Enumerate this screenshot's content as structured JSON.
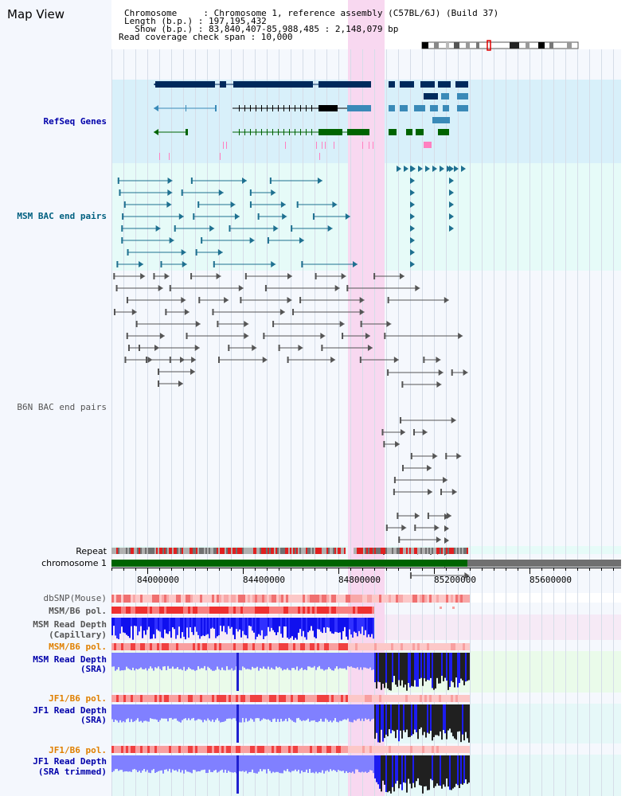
{
  "title": "Map View",
  "header": {
    "chromosome": "Chromosome     : Chromosome 1, reference assembly (C57BL/6J) (Build 37)",
    "length": "Length (b.p.) : 197,195,432",
    "show": "  Show (b.p.) : 83,840,407-85,988,485 : 2,148,079 bp",
    "coverage": "Read coverage check span : 10,000"
  },
  "tracks": {
    "refseq": "RefSeq Genes",
    "msm_bac": "MSM BAC end pairs",
    "b6n_bac": "B6N BAC end pairs",
    "repeat": "Repeat",
    "chromosome": "chromosome 1",
    "dbsnp": "dbSNP(Mouse)",
    "msm_b6_pol_1": "MSM/B6 pol.",
    "msm_depth_cap_1": "MSM Read Depth",
    "msm_depth_cap_2": "(Capillary)",
    "msm_b6_pol_2": "MSM/B6 pol.",
    "msm_depth_sra_1": "MSM Read Depth",
    "msm_depth_sra_2": "(SRA)",
    "jf1_b6_pol_1": "JF1/B6 pol.",
    "jf1_depth_sra_1": "JF1 Read Depth",
    "jf1_depth_sra_2": "(SRA)",
    "jf1_b6_pol_2": "JF1/B6 pol.",
    "jf1_depth_trim_1": "JF1 Read Depth",
    "jf1_depth_trim_2": "(SRA trimmed)"
  },
  "axis_ticks": [
    "84000000",
    "84400000",
    "84800000",
    "85200000",
    "85600000"
  ],
  "colors": {
    "label_blue": "#0000aa",
    "label_teal": "#006080",
    "label_gray": "#555555",
    "label_orange": "#e08000",
    "highlight": "#f8d8f0",
    "refseq_bg": "#d8f0fa",
    "msm_bg": "#e6fbf8",
    "gene_navy": "#002a5c",
    "gene_blue": "#3a8ab8",
    "gene_green": "#006400",
    "chrom_green": "#006400",
    "chrom_gray": "#707070"
  }
}
